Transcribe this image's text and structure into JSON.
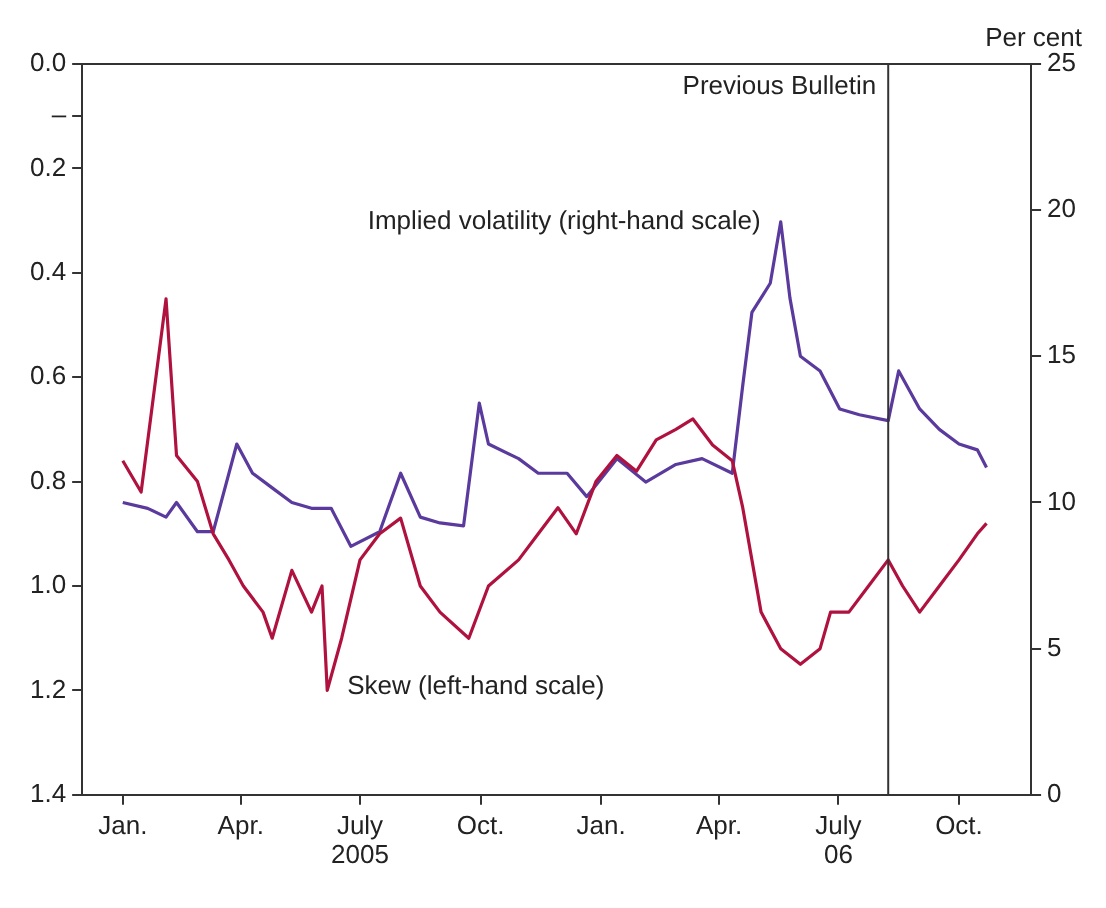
{
  "chart_data": {
    "type": "line",
    "ylabel": null,
    "y2label": "Per cent",
    "xlim": [
      "2004-12-01",
      "2006-11-25"
    ],
    "xticks": [
      {
        "value": "2005-01-01",
        "label": "Jan."
      },
      {
        "value": "2005-04-01",
        "label": "Apr."
      },
      {
        "value": "2005-07-01",
        "label": "July"
      },
      {
        "value": "2005-10-01",
        "label": "Oct."
      },
      {
        "value": "2006-01-01",
        "label": "Jan."
      },
      {
        "value": "2006-04-01",
        "label": "Apr."
      },
      {
        "value": "2006-07-01",
        "label": "July"
      },
      {
        "value": "2006-10-01",
        "label": "Oct."
      }
    ],
    "ylim": [
      1.4,
      0.0
    ],
    "yticks": [
      {
        "value": 0.0,
        "label": "0.0"
      },
      {
        "value": 0.1,
        "label": "–"
      },
      {
        "value": 0.2,
        "label": "0.2"
      },
      {
        "value": 0.4,
        "label": "0.4"
      },
      {
        "value": 0.6,
        "label": "0.6"
      },
      {
        "value": 0.8,
        "label": "0.8"
      },
      {
        "value": 1.0,
        "label": "1.0"
      },
      {
        "value": 1.2,
        "label": "1.2"
      },
      {
        "value": 1.4,
        "label": "1.4"
      }
    ],
    "y2lim": [
      0,
      25
    ],
    "y2ticks": [
      0,
      5,
      10,
      15,
      20,
      25
    ],
    "marker": "none",
    "annotations": [
      "2005",
      "06"
    ],
    "ref_lines": [
      {
        "axis": "x",
        "value": "2006-08-08",
        "label": "Previous Bulletin",
        "color": "#333333"
      }
    ],
    "series": [
      {
        "name": "Skew (left-hand scale)",
        "color": "#b0123f",
        "axis": "y",
        "x": [
          "2005-01-01",
          "2005-01-15",
          "2005-02-03",
          "2005-02-11",
          "2005-02-27",
          "2005-03-11",
          "2005-03-23",
          "2005-04-03",
          "2005-04-18",
          "2005-04-25",
          "2005-05-10",
          "2005-05-25",
          "2005-06-02",
          "2005-06-06",
          "2005-06-17",
          "2005-07-01",
          "2005-07-16",
          "2005-08-01",
          "2005-08-16",
          "2005-08-31",
          "2005-09-22",
          "2005-10-07",
          "2005-10-30",
          "2005-11-14",
          "2005-11-29",
          "2005-12-13",
          "2005-12-28",
          "2006-01-13",
          "2006-01-28",
          "2006-02-12",
          "2006-02-27",
          "2006-03-12",
          "2006-03-27",
          "2006-04-11",
          "2006-04-19",
          "2006-04-26",
          "2006-05-03",
          "2006-05-18",
          "2006-06-02",
          "2006-06-17",
          "2006-06-25",
          "2006-07-09",
          "2006-07-24",
          "2006-08-08",
          "2006-08-19",
          "2006-09-01",
          "2006-09-16",
          "2006-10-01",
          "2006-10-15",
          "2006-10-22"
        ],
        "values": [
          0.76,
          0.82,
          0.45,
          0.75,
          0.8,
          0.9,
          0.95,
          1.0,
          1.05,
          1.1,
          0.97,
          1.05,
          1.0,
          1.2,
          1.1,
          0.95,
          0.9,
          0.87,
          1.0,
          1.05,
          1.1,
          1.0,
          0.95,
          0.9,
          0.85,
          0.9,
          0.8,
          0.75,
          0.78,
          0.72,
          0.7,
          0.68,
          0.73,
          0.76,
          0.85,
          0.95,
          1.05,
          1.12,
          1.15,
          1.12,
          1.05,
          1.05,
          1.0,
          0.95,
          1.0,
          1.05,
          1.0,
          0.95,
          0.9,
          0.88
        ]
      },
      {
        "name": "Implied volatility (right-hand scale)",
        "color": "#5a3a9c",
        "axis": "y2",
        "x": [
          "2005-01-01",
          "2005-01-20",
          "2005-02-03",
          "2005-02-11",
          "2005-02-27",
          "2005-03-11",
          "2005-03-29",
          "2005-04-10",
          "2005-04-25",
          "2005-05-10",
          "2005-05-25",
          "2005-06-09",
          "2005-06-24",
          "2005-07-16",
          "2005-08-01",
          "2005-08-16",
          "2005-08-31",
          "2005-09-18",
          "2005-09-30",
          "2005-10-07",
          "2005-10-30",
          "2005-11-14",
          "2005-12-06",
          "2005-12-21",
          "2006-01-13",
          "2006-02-04",
          "2006-02-27",
          "2006-03-19",
          "2006-04-11",
          "2006-04-19",
          "2006-04-26",
          "2006-05-10",
          "2006-05-18",
          "2006-05-25",
          "2006-06-02",
          "2006-06-17",
          "2006-07-02",
          "2006-07-17",
          "2006-08-08",
          "2006-08-16",
          "2006-09-01",
          "2006-09-16",
          "2006-10-01",
          "2006-10-15",
          "2006-10-22"
        ],
        "values": [
          10,
          9.8,
          9.5,
          10,
          9,
          9,
          12,
          11,
          10.5,
          10,
          9.8,
          9.8,
          8.5,
          9,
          11,
          9.5,
          9.3,
          9.2,
          13.4,
          12,
          11.5,
          11,
          11,
          10.2,
          11.5,
          10.7,
          11.3,
          11.5,
          11,
          14,
          16.5,
          17.5,
          19.6,
          17,
          15,
          14.5,
          13.2,
          13,
          12.8,
          14.5,
          13.2,
          12.5,
          12,
          11.8,
          11.2
        ]
      }
    ]
  }
}
